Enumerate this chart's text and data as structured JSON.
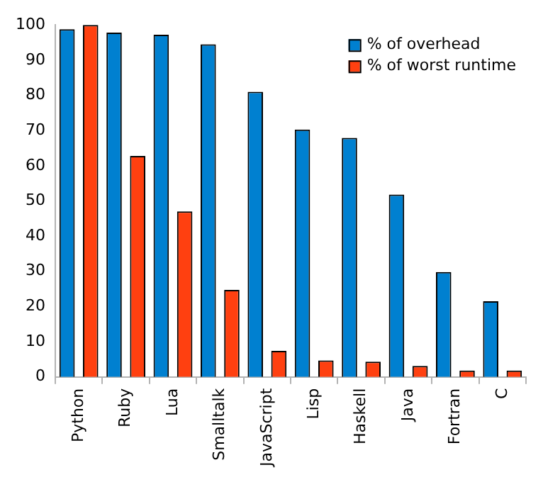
{
  "chart_data": {
    "type": "bar",
    "categories": [
      "Python",
      "Ruby",
      "Lua",
      "Smalltalk",
      "JavaScript",
      "Lisp",
      "Haskell",
      "Java",
      "Fortran",
      "C"
    ],
    "series": [
      {
        "name": "% of overhead",
        "color": "#0080d0",
        "values": [
          98.8,
          97.8,
          97.2,
          94.5,
          81,
          70.3,
          67.9,
          51.8,
          29.8,
          21.5
        ]
      },
      {
        "name": "% of worst runtime",
        "color": "#ff4010",
        "values": [
          100,
          62.8,
          47,
          24.7,
          7.4,
          4.7,
          4.3,
          3.1,
          1.8,
          1.8
        ]
      }
    ],
    "ylim": [
      0,
      100
    ],
    "yticks": [
      0,
      10,
      20,
      30,
      40,
      50,
      60,
      70,
      80,
      90,
      100
    ],
    "grid": false,
    "legend": "top right"
  }
}
